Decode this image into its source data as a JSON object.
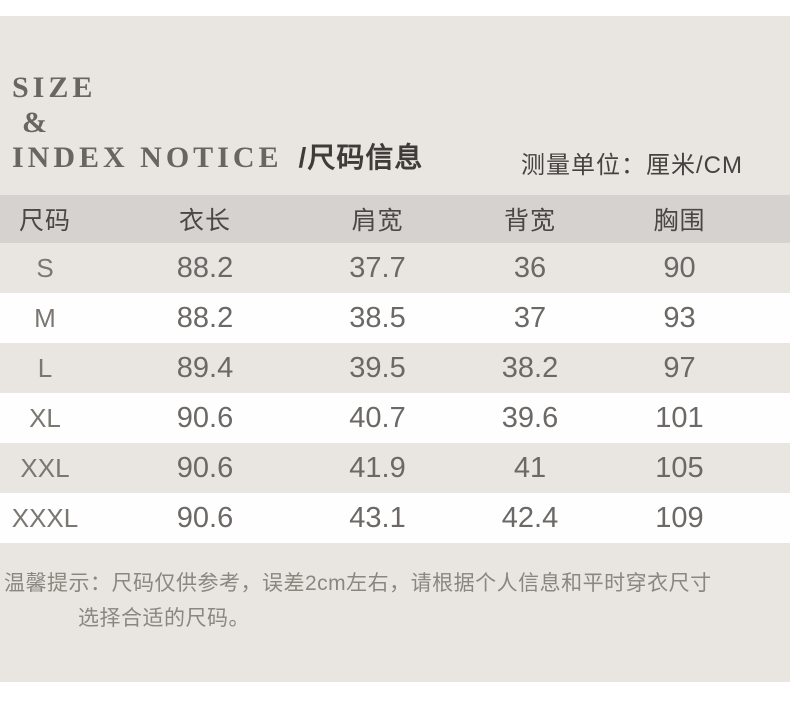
{
  "colors": {
    "panel_bg": "#e9e5e1",
    "table_header_bg": "#d6d2cf",
    "row_white_bg": "#fefefe",
    "title_color": "#6b6560",
    "number_color": "#6b6865",
    "note_color": "#8b8680"
  },
  "header": {
    "title_line1": "SIZE",
    "title_line2": "&",
    "title_line3_en": "INDEX NOTICE",
    "title_line3_cn": "/尺码信息",
    "unit_label": "测量单位：厘米/CM"
  },
  "table": {
    "columns": [
      "尺码",
      "衣长",
      "肩宽",
      "背宽",
      "胸围"
    ],
    "rows": [
      {
        "size": "S",
        "values": [
          "88.2",
          "37.7",
          "36",
          "90"
        ]
      },
      {
        "size": "M",
        "values": [
          "88.2",
          "38.5",
          "37",
          "93"
        ]
      },
      {
        "size": "L",
        "values": [
          "89.4",
          "39.5",
          "38.2",
          "97"
        ]
      },
      {
        "size": "XL",
        "values": [
          "90.6",
          "40.7",
          "39.6",
          "101"
        ]
      },
      {
        "size": "XXL",
        "values": [
          "90.6",
          "41.9",
          "41",
          "105"
        ]
      },
      {
        "size": "XXXL",
        "values": [
          "90.6",
          "43.1",
          "42.4",
          "109"
        ]
      }
    ]
  },
  "note": {
    "line1": "温馨提示：尺码仅供参考，误差2cm左右，请根据个人信息和平时穿衣尺寸",
    "line2": "选择合适的尺码。"
  }
}
